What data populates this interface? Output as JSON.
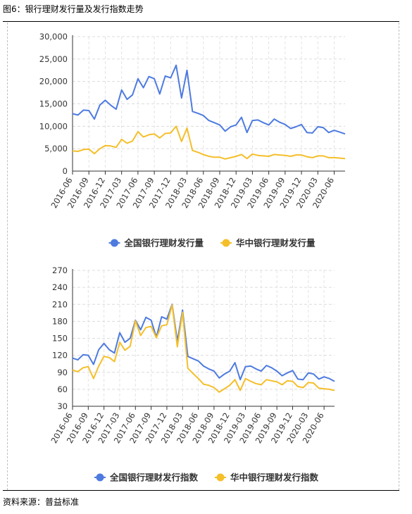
{
  "figure": {
    "title": "图6：银行理财发行量及发行指数走势",
    "source": "资料来源：普益标准"
  },
  "chart_data": [
    {
      "type": "line",
      "ylim": [
        0,
        30000
      ],
      "yticks": [
        "0",
        "5,000",
        "10,000",
        "15,000",
        "20,000",
        "25,000",
        "30,000"
      ],
      "ytick_values": [
        0,
        5000,
        10000,
        15000,
        20000,
        25000,
        30000
      ],
      "grid": true,
      "legend": "bottom-center",
      "x_labels": [
        "2016-06",
        "2016-09",
        "2016-12",
        "2017-03",
        "2017-06",
        "2017-09",
        "2017-12",
        "2018-03",
        "2018-06",
        "2018-09",
        "2018-12",
        "2019-03",
        "2019-06",
        "2019-09",
        "2019-12",
        "2020-03",
        "2020-06"
      ],
      "series": [
        {
          "name": "全国银行理财发行量",
          "color": "#4e7be0",
          "values": [
            12800,
            12500,
            13600,
            13500,
            11600,
            14700,
            15800,
            14700,
            13800,
            18100,
            16000,
            17000,
            20600,
            18600,
            21100,
            20600,
            17200,
            21200,
            20800,
            23600,
            16300,
            22500,
            13300,
            12900,
            12400,
            11300,
            10800,
            10300,
            8900,
            9900,
            10300,
            12000,
            8600,
            11300,
            11400,
            10800,
            10300,
            11600,
            10900,
            10400,
            9500,
            9900,
            10400,
            8600,
            8500,
            9900,
            9700,
            8600,
            9100,
            8700,
            8300
          ]
        },
        {
          "name": "华中银行理财发行量",
          "color": "#f5bf2a",
          "values": [
            4500,
            4400,
            4800,
            4900,
            3900,
            5000,
            5700,
            5600,
            5300,
            7100,
            6200,
            6700,
            8800,
            7600,
            8100,
            8300,
            7400,
            8400,
            8500,
            10000,
            6600,
            9600,
            4600,
            4200,
            3700,
            3300,
            3100,
            3100,
            2700,
            3000,
            3300,
            3700,
            2800,
            3800,
            3500,
            3400,
            3300,
            3700,
            3600,
            3500,
            3300,
            3600,
            3600,
            3200,
            3000,
            3400,
            3400,
            3000,
            3000,
            2900,
            2800
          ]
        }
      ]
    },
    {
      "type": "line",
      "ylim": [
        30,
        270
      ],
      "yticks": [
        "30",
        "60",
        "90",
        "120",
        "150",
        "180",
        "210",
        "240",
        "270"
      ],
      "ytick_values": [
        30,
        60,
        90,
        120,
        150,
        180,
        210,
        240,
        270
      ],
      "grid": true,
      "legend": "bottom-center",
      "x_labels": [
        "2016-06",
        "2016-09",
        "2016-12",
        "2017-03",
        "2017-06",
        "2017-09",
        "2017-12",
        "2018-03",
        "2018-06",
        "2018-09",
        "2018-12",
        "2019-03",
        "2019-06",
        "2019-09",
        "2019-12",
        "2020-03",
        "2020-06"
      ],
      "series": [
        {
          "name": "全国银行理财发行指数",
          "color": "#4e7be0",
          "values": [
            115,
            112,
            121,
            120,
            104,
            130,
            141,
            130,
            124,
            160,
            143,
            150,
            182,
            165,
            187,
            182,
            152,
            188,
            184,
            210,
            145,
            200,
            118,
            114,
            110,
            101,
            96,
            92,
            80,
            87,
            92,
            107,
            77,
            100,
            101,
            96,
            92,
            102,
            98,
            92,
            84,
            89,
            93,
            78,
            77,
            89,
            87,
            78,
            82,
            79,
            74
          ]
        },
        {
          "name": "华中银行理财发行指数",
          "color": "#f5bf2a",
          "values": [
            94,
            91,
            98,
            100,
            79,
            101,
            118,
            116,
            109,
            143,
            129,
            136,
            181,
            155,
            169,
            171,
            151,
            172,
            174,
            209,
            135,
            196,
            97,
            88,
            79,
            69,
            67,
            63,
            55,
            61,
            67,
            77,
            58,
            79,
            74,
            70,
            68,
            77,
            75,
            73,
            68,
            75,
            74,
            65,
            63,
            72,
            71,
            62,
            61,
            60,
            58
          ]
        }
      ]
    }
  ]
}
